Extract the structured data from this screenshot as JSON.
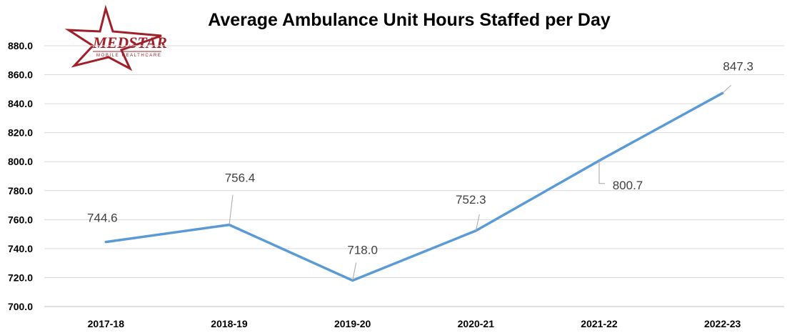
{
  "logo": {
    "word": "MEDSTAR",
    "subtitle": "MOBILE HEALTHCARE",
    "color": "#a0202a"
  },
  "chart_data": {
    "type": "line",
    "title": "Average Ambulance Unit Hours Staffed per Day",
    "xlabel": "",
    "ylabel": "",
    "categories": [
      "2017-18",
      "2018-19",
      "2019-20",
      "2020-21",
      "2021-22",
      "2022-23"
    ],
    "series": [
      {
        "values": [
          744.6,
          756.4,
          718.0,
          752.3,
          800.7,
          847.3
        ],
        "color": "#5b9bd5"
      }
    ],
    "data_labels": [
      "744.6",
      "756.4",
      "718.0",
      "752.3",
      "800.7",
      "847.3"
    ],
    "yticks": [
      "700.0",
      "720.0",
      "740.0",
      "760.0",
      "780.0",
      "800.0",
      "820.0",
      "840.0",
      "860.0",
      "880.0"
    ],
    "ylim": [
      700,
      880
    ],
    "grid": true,
    "legend": "none"
  }
}
